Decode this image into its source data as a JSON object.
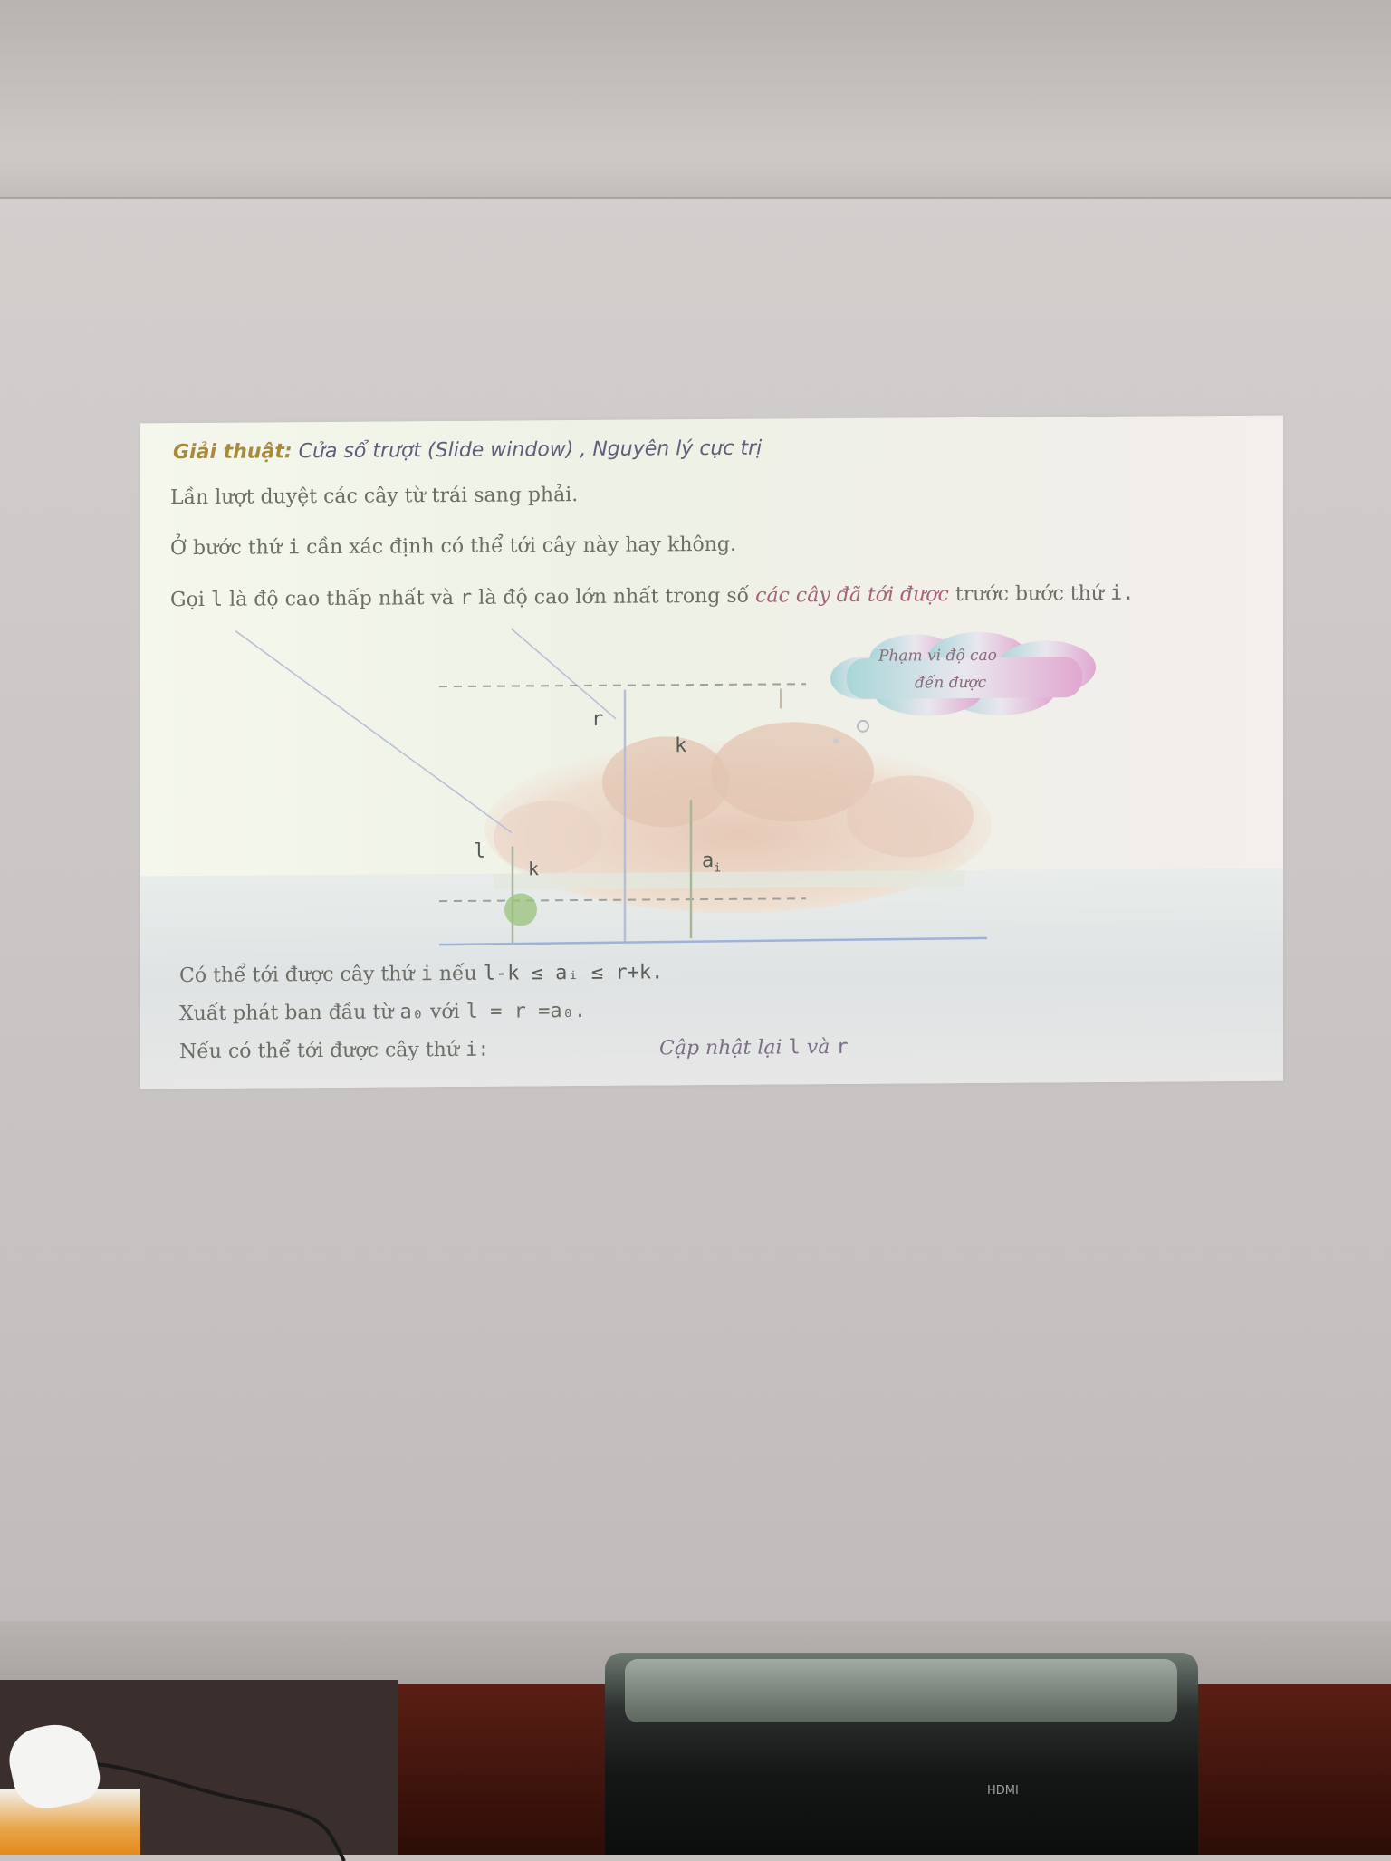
{
  "scene": {
    "projector_label": "HDMI"
  },
  "slide": {
    "title_keyword": "Giải thuật:",
    "title_rest": "Cửa sổ trượt (Slide window) , Nguyên lý cực trị",
    "line1": "Lần lượt duyệt các cây từ trái sang phải.",
    "line2_a": "Ở bước thứ",
    "line2_var": "i",
    "line2_b": "cần xác định có thể tới cây này hay không.",
    "line3_a": "Gọi",
    "line3_var_l": "l",
    "line3_b": "là độ cao thấp nhất và",
    "line3_var_r": "r",
    "line3_c": "là độ cao lớn nhất trong số",
    "line3_italic": "các cây đã tới được",
    "line3_d": "trước bước thứ",
    "line3_var_i": "i.",
    "cloud_line1": "Phạm vi độ cao",
    "cloud_line2": "đến được",
    "diagram_labels": {
      "r": "r",
      "k_top": "k",
      "l": "l",
      "k_bottom": "k",
      "a_i": "a",
      "a_i_sub": "i"
    },
    "cond_a": "Có thể tới được cây thứ",
    "cond_var_i": "i",
    "cond_b": "nếu",
    "cond_formula": "l-k ≤ aᵢ ≤ r+k.",
    "start_a": "Xuất phát ban đầu từ",
    "start_var": "a₀",
    "start_b": "với",
    "start_formula": "l = r =a₀.",
    "update_a": "Nếu có thể tới được cây thứ",
    "update_var": "i:",
    "update_italic": "Cập nhật lại",
    "update_var_l": "l",
    "update_and": "và",
    "update_var_r": "r"
  }
}
